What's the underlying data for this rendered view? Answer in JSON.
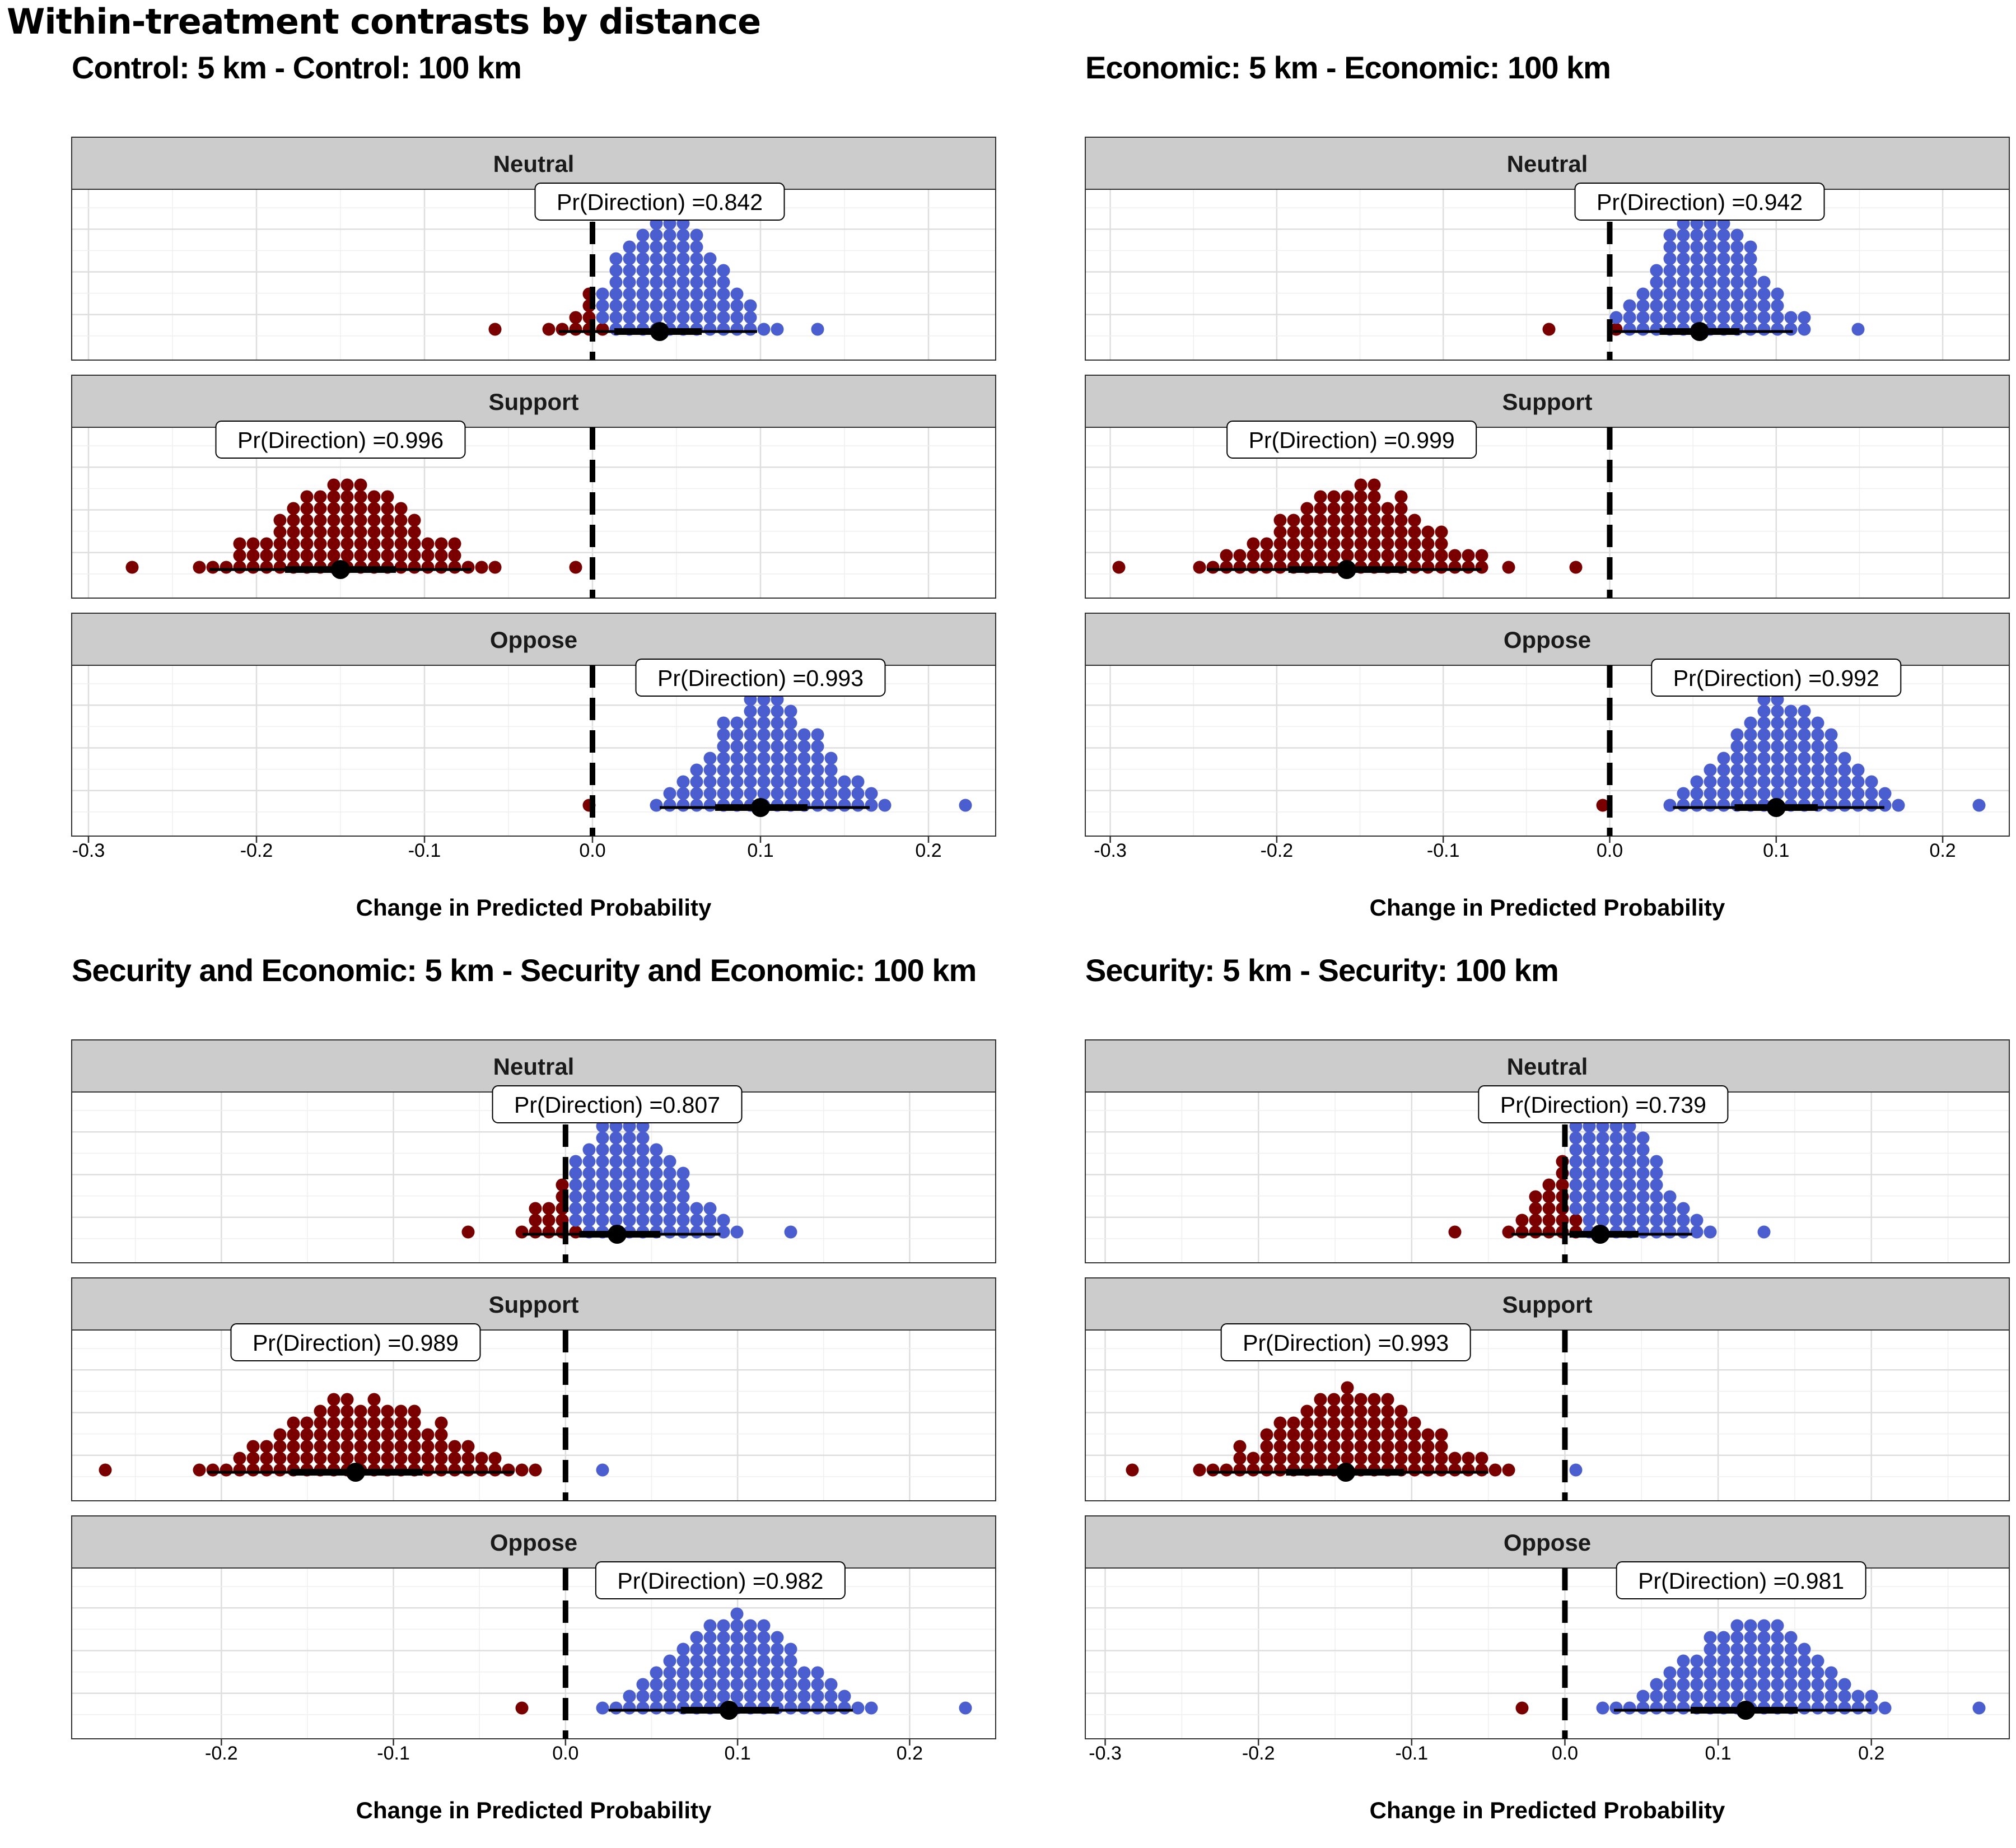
{
  "title": "Within-treatment contrasts by distance",
  "colors": {
    "below_zero": "#7a0000",
    "above_zero": "#4a5ed0",
    "strip_fill": "#cccccc",
    "grid": "#dedede"
  },
  "chart_data": [
    {
      "type": "dotplot",
      "title": "Control: 5 km - Control: 100 km",
      "xlabel": "Change in Predicted Probability",
      "xticks": [
        -0.3,
        -0.2,
        -0.1,
        0.0,
        0.1,
        0.2
      ],
      "xtick_labels": [
        "-0.3",
        "-0.2",
        "-0.1",
        "0.0",
        "0.1",
        "0.2"
      ],
      "xlim": [
        -0.31,
        0.24
      ],
      "grid": true,
      "facets": [
        {
          "strip": "Neutral",
          "label": "Pr(Direction) =0.842",
          "median": 0.04,
          "interval_66": [
            0.013,
            0.065
          ],
          "interval_95": [
            -0.02,
            0.098
          ],
          "range": [
            -0.065,
            0.132
          ],
          "mode": 0.04,
          "n_dots": 100
        },
        {
          "strip": "Support",
          "label": "Pr(Direction) =0.996",
          "median": -0.15,
          "interval_66": [
            -0.183,
            -0.117
          ],
          "interval_95": [
            -0.228,
            -0.072
          ],
          "range": [
            -0.282,
            -0.012
          ],
          "mode": -0.15,
          "n_dots": 100
        },
        {
          "strip": "Oppose",
          "label": "Pr(Direction) =0.993",
          "median": 0.1,
          "interval_66": [
            0.073,
            0.128
          ],
          "interval_95": [
            0.04,
            0.165
          ],
          "range": [
            -0.005,
            0.216
          ],
          "mode": 0.1,
          "n_dots": 100
        }
      ]
    },
    {
      "type": "dotplot",
      "title": "Economic: 5 km - Economic: 100 km",
      "xlabel": "Change in Predicted Probability",
      "xticks": [
        -0.3,
        -0.2,
        -0.1,
        0.0,
        0.1,
        0.2
      ],
      "xtick_labels": [
        "-0.3",
        "-0.2",
        "-0.1",
        "0.0",
        "0.1",
        "0.2"
      ],
      "xlim": [
        -0.315,
        0.24
      ],
      "grid": true,
      "facets": [
        {
          "strip": "Neutral",
          "label": "Pr(Direction) =0.942",
          "median": 0.054,
          "interval_66": [
            0.03,
            0.078
          ],
          "interval_95": [
            0.002,
            0.11
          ],
          "range": [
            -0.038,
            0.142
          ],
          "mode": 0.054,
          "n_dots": 100
        },
        {
          "strip": "Support",
          "label": "Pr(Direction) =0.999",
          "median": -0.158,
          "interval_66": [
            -0.193,
            -0.122
          ],
          "interval_95": [
            -0.242,
            -0.077
          ],
          "range": [
            -0.3,
            -0.027
          ],
          "mode": -0.155,
          "n_dots": 100
        },
        {
          "strip": "Oppose",
          "label": "Pr(Direction) =0.992",
          "median": 0.1,
          "interval_66": [
            0.075,
            0.125
          ],
          "interval_95": [
            0.038,
            0.165
          ],
          "range": [
            -0.008,
            0.22
          ],
          "mode": 0.1,
          "n_dots": 100
        }
      ]
    },
    {
      "type": "dotplot",
      "title": "Security and Economic: 5 km - Security and Economic: 100 km",
      "xlabel": "Change in Predicted Probability",
      "xticks": [
        -0.2,
        -0.1,
        0.0,
        0.1,
        0.2
      ],
      "xtick_labels": [
        "-0.2",
        "-0.1",
        "0.0",
        "0.1",
        "0.2"
      ],
      "xlim": [
        -0.287,
        0.25
      ],
      "grid": true,
      "facets": [
        {
          "strip": "Neutral",
          "label": "Pr(Direction) =0.807",
          "median": 0.03,
          "interval_66": [
            0.008,
            0.055
          ],
          "interval_95": [
            -0.025,
            0.09
          ],
          "range": [
            -0.063,
            0.125
          ],
          "mode": 0.03,
          "n_dots": 100
        },
        {
          "strip": "Support",
          "label": "Pr(Direction) =0.989",
          "median": -0.122,
          "interval_66": [
            -0.16,
            -0.083
          ],
          "interval_95": [
            -0.208,
            -0.03
          ],
          "range": [
            -0.27,
            0.015
          ],
          "mode": -0.122,
          "n_dots": 100
        },
        {
          "strip": "Oppose",
          "label": "Pr(Direction) =0.982",
          "median": 0.095,
          "interval_66": [
            0.067,
            0.124
          ],
          "interval_95": [
            0.025,
            0.167
          ],
          "range": [
            -0.03,
            0.228
          ],
          "mode": 0.09,
          "n_dots": 100
        }
      ]
    },
    {
      "type": "dotplot",
      "title": "Security: 5 km - Security: 100 km",
      "xlabel": "Change in Predicted Probability",
      "xticks": [
        -0.3,
        -0.2,
        -0.1,
        0.0,
        0.1,
        0.2
      ],
      "xtick_labels": [
        "-0.3",
        "-0.2",
        "-0.1",
        "0.0",
        "0.1",
        "0.2"
      ],
      "xlim": [
        -0.313,
        0.29
      ],
      "grid": true,
      "facets": [
        {
          "strip": "Neutral",
          "label": "Pr(Direction) =0.739",
          "median": 0.023,
          "interval_66": [
            0.003,
            0.048
          ],
          "interval_95": [
            -0.035,
            0.083
          ],
          "range": [
            -0.072,
            0.122
          ],
          "mode": 0.025,
          "n_dots": 100
        },
        {
          "strip": "Support",
          "label": "Pr(Direction) =0.993",
          "median": -0.143,
          "interval_66": [
            -0.182,
            -0.105
          ],
          "interval_95": [
            -0.233,
            -0.05
          ],
          "range": [
            -0.29,
            0.006
          ],
          "mode": -0.143,
          "n_dots": 100
        },
        {
          "strip": "Oppose",
          "label": "Pr(Direction) =0.981",
          "median": 0.118,
          "interval_66": [
            0.082,
            0.152
          ],
          "interval_95": [
            0.032,
            0.2
          ],
          "range": [
            -0.035,
            0.265
          ],
          "mode": 0.115,
          "n_dots": 100
        }
      ]
    }
  ]
}
